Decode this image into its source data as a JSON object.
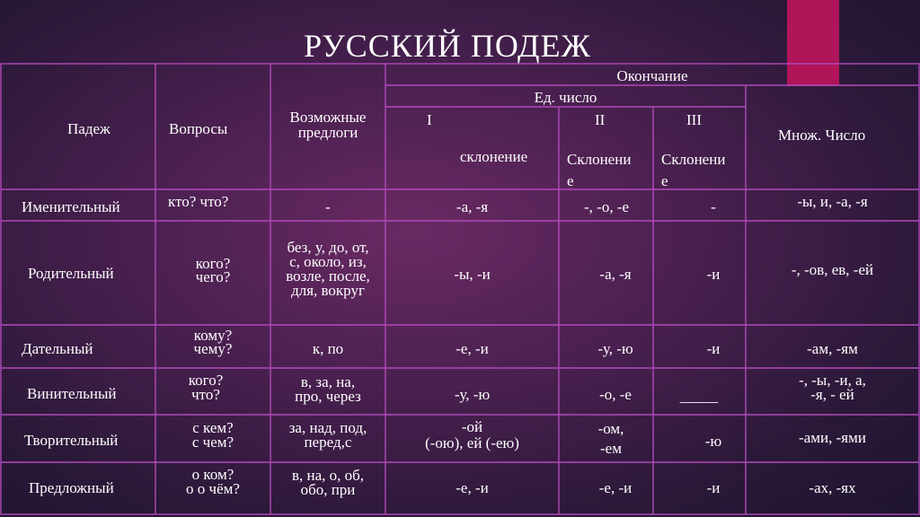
{
  "slide": {
    "title": "РУССКИЙ  ПОДЕЖ",
    "accent_color": "#b0155a",
    "border_color": "#b04ab8"
  },
  "table": {
    "header": {
      "case": "Падеж",
      "questions": "Вопросы",
      "prepositions_1": "Возможные",
      "prepositions_2": "предлоги",
      "ending": "Окончание",
      "singular": "Ед. число",
      "decl1_num": "I",
      "decl1_label": "склонение",
      "decl2_num": "II",
      "decl2_label_1": "Склонени",
      "decl2_label_2": "е",
      "decl3_num": "III",
      "decl3_label_1": "Склонени",
      "decl3_label_2": "е",
      "plural": "Множ. Число"
    },
    "rows": [
      {
        "case": "Именительный",
        "questions": [
          "кто? что?"
        ],
        "prepositions": [
          "-"
        ],
        "decl1": [
          "-а, -я"
        ],
        "decl2": [
          "-, -о, -е"
        ],
        "decl3": [
          "-"
        ],
        "plural": [
          "-ы, и, -а, -я"
        ]
      },
      {
        "case": "Родительный",
        "questions": [
          "кого?",
          "чего?"
        ],
        "prepositions": [
          "без, у, до, от,",
          "с, около, из,",
          "возле, после,",
          "для, вокруг"
        ],
        "decl1": [
          "-ы, -и"
        ],
        "decl2": [
          "-а, -я"
        ],
        "decl3": [
          "-и"
        ],
        "plural": [
          "-, -ов, ев, -ей"
        ]
      },
      {
        "case": "Дательный",
        "questions": [
          "кому?",
          "чему?"
        ],
        "prepositions": [
          "к, по"
        ],
        "decl1": [
          "-е, -и"
        ],
        "decl2": [
          "-у, -ю"
        ],
        "decl3": [
          "-и"
        ],
        "plural": [
          "-ам, -ям"
        ]
      },
      {
        "case": "Винительный",
        "questions": [
          "кого?",
          "что?"
        ],
        "prepositions": [
          "в, за, на,",
          "про, через"
        ],
        "decl1": [
          "-у, -ю"
        ],
        "decl2": [
          "-о, -е"
        ],
        "decl3": [
          "_____"
        ],
        "plural": [
          "-, -ы, -и, а,",
          "-я, - ей"
        ]
      },
      {
        "case": "Творительный",
        "questions": [
          "с кем?",
          "с чем?"
        ],
        "prepositions": [
          "за, над, под,",
          "перед,с"
        ],
        "decl1": [
          "-ой",
          "(-ою), ей (-ею)"
        ],
        "decl2": [
          "-ом,",
          "-ем"
        ],
        "decl3": [
          "-ю"
        ],
        "plural": [
          "-ами, -ями"
        ]
      },
      {
        "case": "Предложный",
        "questions": [
          "о ком?",
          "о   о чём?"
        ],
        "prepositions": [
          "в, на, о, об,",
          "обо, при"
        ],
        "decl1": [
          "-е, -и"
        ],
        "decl2": [
          "-е, -и"
        ],
        "decl3": [
          "-и"
        ],
        "plural": [
          "-ах, -ях"
        ]
      }
    ]
  }
}
